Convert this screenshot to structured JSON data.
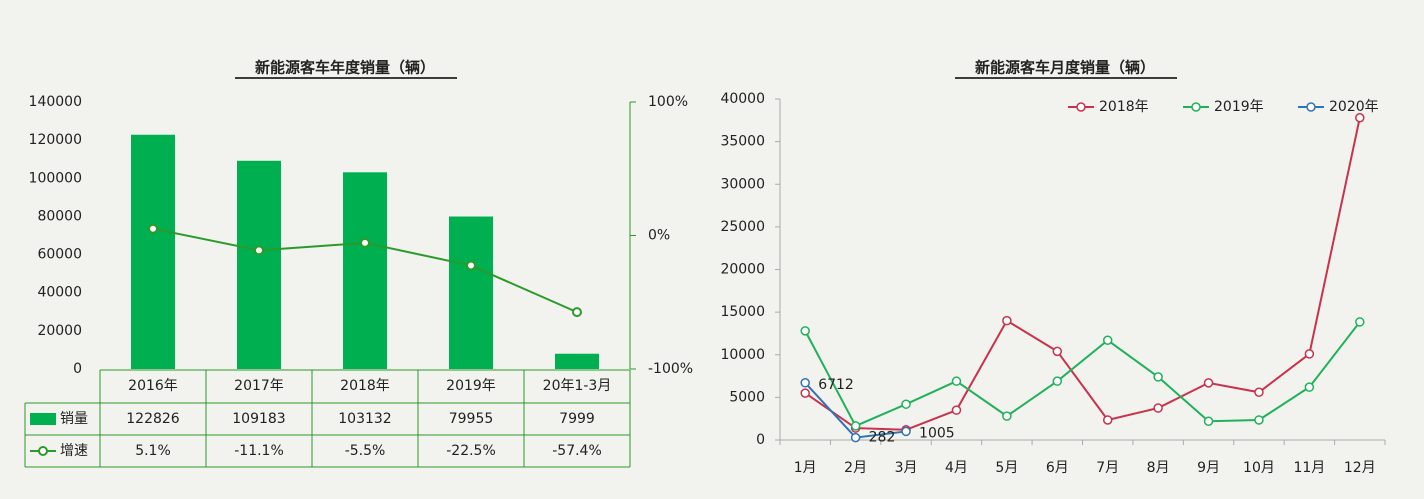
{
  "chart_data": [
    {
      "type": "bar",
      "title": "新能源客车年度销量（辆）",
      "categories": [
        "2016年",
        "2017年",
        "2018年",
        "2019年",
        "20年1-3月"
      ],
      "series": [
        {
          "name": "销量",
          "type": "bar",
          "color": "#00b050",
          "values": [
            122826,
            109183,
            103132,
            79955,
            7999
          ]
        },
        {
          "name": "增速",
          "type": "line",
          "axis": "y2",
          "color": "#2a9a2a",
          "values": [
            5.1,
            -11.1,
            -5.5,
            -22.5,
            -57.4
          ],
          "value_labels": [
            "5.1%",
            "-11.1%",
            "-5.5%",
            "-22.5%",
            "-57.4%"
          ]
        }
      ],
      "ylim": [
        0,
        140000
      ],
      "yticks": [
        0,
        20000,
        40000,
        60000,
        80000,
        100000,
        120000,
        140000
      ],
      "y2lim": [
        -100,
        100
      ],
      "y2ticks": [
        {
          "value": -100,
          "label": "-100%"
        },
        {
          "value": 0,
          "label": "0%"
        },
        {
          "value": 100,
          "label": "100%"
        }
      ],
      "data_table": true
    },
    {
      "type": "line",
      "title": "新能源客车月度销量（辆）",
      "categories": [
        "1月",
        "2月",
        "3月",
        "4月",
        "5月",
        "6月",
        "7月",
        "8月",
        "9月",
        "10月",
        "11月",
        "12月"
      ],
      "series": [
        {
          "name": "2018年",
          "color": "#c8324b",
          "values": [
            5500,
            1400,
            1200,
            3500,
            14000,
            10400,
            2350,
            3750,
            6700,
            5600,
            10100,
            37800
          ]
        },
        {
          "name": "2019年",
          "color": "#1fb25a",
          "values": [
            12800,
            1650,
            4200,
            6900,
            2800,
            6900,
            11700,
            7400,
            2200,
            2350,
            6200,
            13850
          ]
        },
        {
          "name": "2020年",
          "color": "#2e75b6",
          "values": [
            6712,
            282,
            1005,
            null,
            null,
            null,
            null,
            null,
            null,
            null,
            null,
            null
          ],
          "data_labels": true
        }
      ],
      "ylim": [
        0,
        40000
      ],
      "yticks": [
        0,
        5000,
        10000,
        15000,
        20000,
        25000,
        30000,
        35000,
        40000
      ],
      "legend": "top-right"
    }
  ]
}
